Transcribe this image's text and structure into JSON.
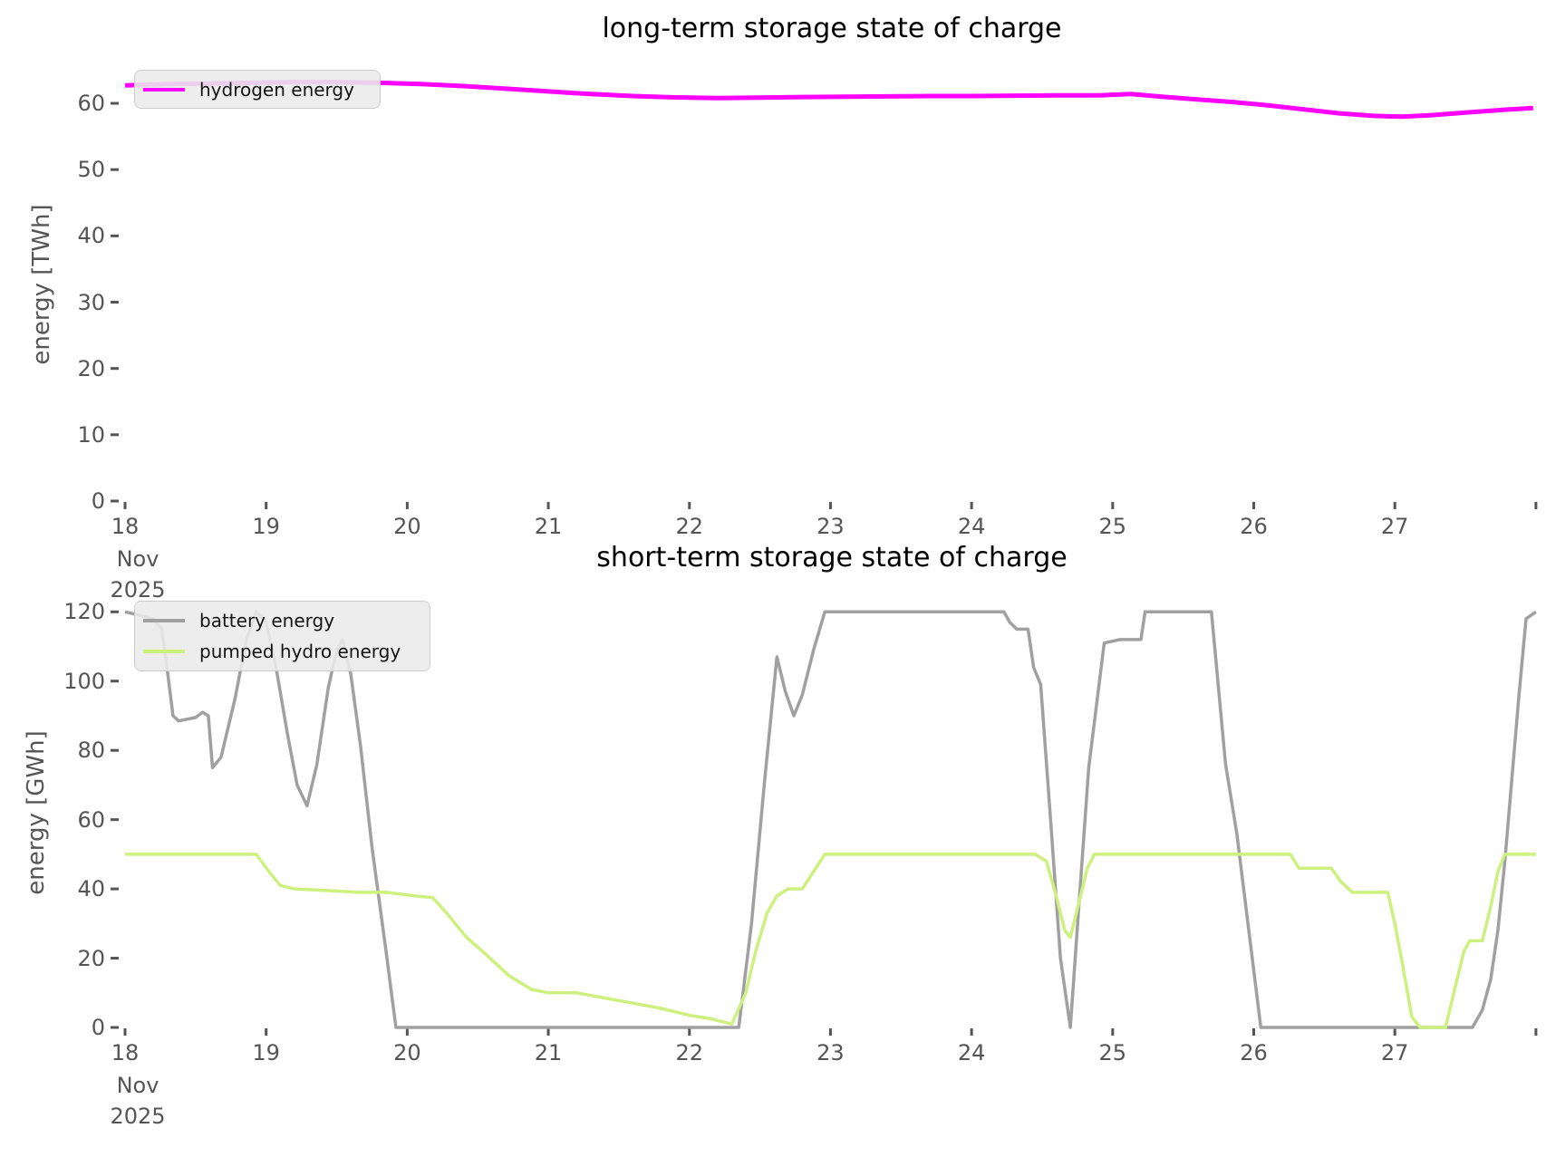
{
  "figure": {
    "background": "#ffffff",
    "tick_color": "#555555",
    "title_color": "#000000",
    "legend_bg": "#eaeaea",
    "legend_border": "#cccccc"
  },
  "chart_data": [
    {
      "type": "line",
      "title": "long-term storage state of charge",
      "xlabel": "",
      "ylabel": "energy [TWh]",
      "xlim": [
        18,
        28.02
      ],
      "ylim": [
        0,
        65.2
      ],
      "grid": false,
      "legend_position": "upper left",
      "xticks": [
        18,
        19,
        20,
        21,
        22,
        23,
        24,
        25,
        26,
        27,
        28
      ],
      "xtick_labels": [
        "18",
        "19",
        "20",
        "21",
        "22",
        "23",
        "24",
        "25",
        "26",
        "27",
        ""
      ],
      "xtick_sublabels": [
        "Nov",
        "2025"
      ],
      "yticks": [
        0,
        10,
        20,
        30,
        40,
        50,
        60
      ],
      "ytick_labels": [
        "0",
        "10",
        "20",
        "30",
        "40",
        "50",
        "60"
      ],
      "series": [
        {
          "name": "hydrogen energy",
          "color": "#ff00ff",
          "linewidth": 5,
          "x": [
            18.0,
            18.3,
            18.6,
            18.9,
            19.2,
            19.5,
            19.8,
            20.1,
            20.4,
            20.7,
            21.0,
            21.3,
            21.6,
            21.9,
            22.2,
            22.5,
            22.8,
            23.1,
            23.4,
            23.7,
            24.0,
            24.3,
            24.6,
            24.9,
            25.13,
            25.35,
            25.6,
            25.85,
            26.1,
            26.35,
            26.6,
            26.85,
            27.05,
            27.25,
            27.5,
            27.75,
            27.98
          ],
          "y": [
            62.7,
            62.9,
            63.0,
            63.1,
            63.2,
            63.2,
            63.1,
            62.9,
            62.6,
            62.2,
            61.8,
            61.4,
            61.1,
            60.9,
            60.8,
            60.85,
            60.95,
            61.0,
            61.05,
            61.1,
            61.1,
            61.15,
            61.2,
            61.2,
            61.4,
            61.0,
            60.6,
            60.2,
            59.7,
            59.1,
            58.5,
            58.1,
            58.0,
            58.2,
            58.6,
            59.0,
            59.3
          ]
        }
      ]
    },
    {
      "type": "line",
      "title": "short-term storage state of charge",
      "xlabel": "",
      "ylabel": "energy [GWh]",
      "xlim": [
        18,
        28.02
      ],
      "ylim": [
        0,
        124
      ],
      "grid": false,
      "legend_position": "upper left",
      "xticks": [
        18,
        19,
        20,
        21,
        22,
        23,
        24,
        25,
        26,
        27,
        28
      ],
      "xtick_labels": [
        "18",
        "19",
        "20",
        "21",
        "22",
        "23",
        "24",
        "25",
        "26",
        "27",
        ""
      ],
      "xtick_sublabels": [
        "Nov",
        "2025"
      ],
      "yticks": [
        0,
        20,
        40,
        60,
        80,
        100,
        120
      ],
      "ytick_labels": [
        "0",
        "20",
        "40",
        "60",
        "80",
        "100",
        "120"
      ],
      "series": [
        {
          "name": "battery energy",
          "color": "#a0a0a0",
          "linewidth": 3.5,
          "x": [
            18.0,
            18.1,
            18.2,
            18.26,
            18.3,
            18.34,
            18.38,
            18.5,
            18.55,
            18.59,
            18.62,
            18.68,
            18.78,
            18.86,
            18.93,
            19.0,
            19.07,
            19.15,
            19.22,
            19.29,
            19.36,
            19.44,
            19.5,
            19.54,
            19.6,
            19.67,
            19.75,
            19.85,
            19.92,
            20.5,
            21.0,
            21.5,
            22.0,
            22.35,
            22.44,
            22.53,
            22.62,
            22.68,
            22.74,
            22.8,
            22.88,
            22.96,
            23.5,
            24.0,
            24.23,
            24.27,
            24.32,
            24.4,
            24.44,
            24.49,
            24.56,
            24.63,
            24.7,
            24.76,
            24.83,
            24.94,
            25.05,
            25.2,
            25.23,
            25.45,
            25.7,
            25.8,
            25.88,
            26.05,
            26.5,
            27.0,
            27.55,
            27.62,
            27.68,
            27.73,
            27.78,
            27.83,
            27.88,
            27.93,
            28.0
          ],
          "y": [
            120,
            119,
            118,
            115,
            103,
            90,
            88.5,
            89.5,
            91,
            90,
            75,
            78,
            95,
            112,
            120,
            117,
            104,
            85,
            70,
            64,
            76,
            98,
            109,
            112,
            102,
            81,
            52,
            22,
            0,
            0,
            0,
            0,
            0,
            0,
            30,
            70,
            107,
            97,
            90,
            96,
            109,
            120,
            120,
            120,
            120,
            117,
            115,
            115,
            104,
            99,
            60,
            20,
            0,
            35,
            75,
            111,
            112,
            112,
            120,
            120,
            120,
            76,
            56,
            0,
            0,
            0,
            0,
            5,
            14,
            28,
            48,
            72,
            96,
            118,
            120
          ]
        },
        {
          "name": "pumped hydro energy",
          "color": "#cdf07e",
          "linewidth": 3.5,
          "x": [
            18.0,
            18.5,
            18.93,
            19.02,
            19.1,
            19.2,
            19.45,
            19.65,
            19.85,
            20.05,
            20.18,
            20.28,
            20.42,
            20.56,
            20.72,
            20.88,
            21.0,
            21.2,
            21.4,
            21.6,
            21.8,
            22.0,
            22.15,
            22.3,
            22.4,
            22.47,
            22.55,
            22.62,
            22.7,
            22.8,
            22.88,
            22.96,
            23.5,
            24.0,
            24.45,
            24.53,
            24.6,
            24.66,
            24.7,
            24.76,
            24.82,
            24.87,
            25.5,
            26.0,
            26.26,
            26.32,
            26.55,
            26.62,
            26.7,
            26.95,
            27.0,
            27.06,
            27.12,
            27.18,
            27.36,
            27.43,
            27.49,
            27.53,
            27.62,
            27.68,
            27.73,
            27.78,
            28.0
          ],
          "y": [
            50,
            50,
            50,
            45,
            41,
            40,
            39.5,
            39,
            39,
            38,
            37.5,
            33,
            26,
            21,
            15,
            11,
            10,
            10,
            8.5,
            7,
            5.5,
            3.5,
            2.5,
            1,
            10,
            22,
            33,
            38,
            40,
            40,
            45,
            50,
            50,
            50,
            50,
            48,
            38,
            28,
            26,
            36,
            46,
            50,
            50,
            50,
            50,
            46,
            46,
            42,
            39,
            39,
            30,
            17,
            3,
            0,
            0,
            12,
            22,
            25,
            25,
            35,
            45,
            50,
            50
          ]
        }
      ]
    }
  ]
}
